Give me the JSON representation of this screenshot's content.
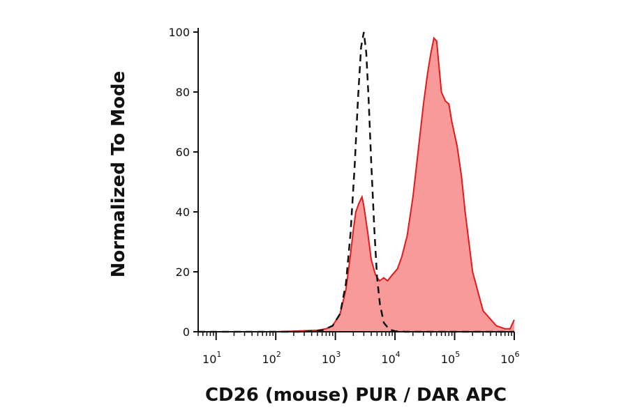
{
  "chart_data": {
    "type": "area",
    "xlabel": "CD26 (mouse) PUR / DAR APC",
    "ylabel": "Normalized To Mode",
    "x_scale": "log",
    "xlim": [
      5,
      1000000
    ],
    "ylim": [
      0,
      100
    ],
    "x_ticks": [
      {
        "base": "10",
        "exp": "1",
        "value": 10
      },
      {
        "base": "10",
        "exp": "2",
        "value": 100
      },
      {
        "base": "10",
        "exp": "3",
        "value": 1000
      },
      {
        "base": "10",
        "exp": "4",
        "value": 10000
      },
      {
        "base": "10",
        "exp": "5",
        "value": 100000
      },
      {
        "base": "10",
        "exp": "6",
        "value": 1000000
      }
    ],
    "y_ticks": [
      "0",
      "20",
      "40",
      "60",
      "80",
      "100"
    ],
    "grid": false,
    "legend": "none",
    "series": [
      {
        "style": "filled",
        "color": "#e3191c",
        "fill": "#f99a9a",
        "x": [
          5,
          100,
          500,
          700,
          900,
          1200,
          1500,
          1800,
          2000,
          2200,
          2500,
          2800,
          3000,
          3500,
          4000,
          4700,
          5500,
          6500,
          7500,
          9000,
          11000,
          13000,
          16000,
          20000,
          25000,
          30000,
          35000,
          40000,
          45000,
          50000,
          55000,
          60000,
          70000,
          80000,
          90000,
          110000,
          130000,
          150000,
          200000,
          300000,
          500000,
          700000,
          850000,
          1000000
        ],
        "y": [
          0,
          0,
          0.5,
          1,
          2,
          6,
          14,
          26,
          34,
          40,
          43,
          45,
          42,
          33,
          24,
          19,
          17,
          18,
          17,
          19,
          21,
          25,
          32,
          45,
          62,
          76,
          86,
          93,
          98,
          97,
          88,
          80,
          77,
          76,
          70,
          62,
          52,
          40,
          20,
          7,
          2,
          1,
          1,
          4
        ]
      },
      {
        "style": "dashed",
        "color": "#111111",
        "x": [
          5,
          100,
          300,
          600,
          900,
          1200,
          1500,
          1800,
          2100,
          2400,
          2700,
          3000,
          3300,
          3600,
          4000,
          4500,
          5000,
          5600,
          6500,
          8000,
          10000,
          15000,
          30000,
          1000000
        ],
        "y": [
          0,
          0,
          0,
          0.5,
          2,
          6,
          16,
          33,
          55,
          78,
          95,
          100,
          93,
          78,
          56,
          34,
          18,
          9,
          3,
          0.8,
          0.2,
          0,
          0,
          0
        ]
      }
    ]
  }
}
